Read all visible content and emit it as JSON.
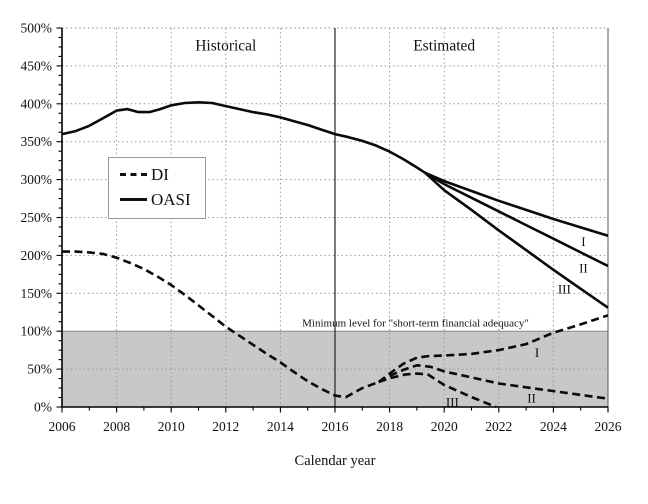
{
  "figure": {
    "xlabel": "Calendar year",
    "legend": [
      {
        "id": "di",
        "label": "DI",
        "style": "dashed"
      },
      {
        "id": "oasi",
        "label": "OASI",
        "style": "solid"
      }
    ]
  },
  "colors": {
    "line": "#0a0a0a",
    "grid": "#999999",
    "band_fill": "#c8c8c8",
    "band_edge": "#8a8a8a",
    "axis": "#000000",
    "divider": "#222222",
    "frame": "#555555",
    "background": "#ffffff"
  },
  "chart_data": {
    "type": "line",
    "title": "",
    "xlabel": "Calendar year",
    "ylabel": "",
    "x_range": [
      2006,
      2026
    ],
    "y_range": [
      0,
      500
    ],
    "grid": "dotted, every 2 years and every 50%",
    "legend_position": "upper-left box",
    "x_ticks": [
      {
        "value": 2006,
        "label": "2006"
      },
      {
        "value": 2008,
        "label": "2008"
      },
      {
        "value": 2010,
        "label": "2010"
      },
      {
        "value": 2012,
        "label": "2012"
      },
      {
        "value": 2014,
        "label": "2014"
      },
      {
        "value": 2016,
        "label": "2016"
      },
      {
        "value": 2018,
        "label": "2018"
      },
      {
        "value": 2020,
        "label": "2020"
      },
      {
        "value": 2022,
        "label": "2022"
      },
      {
        "value": 2024,
        "label": "2024"
      },
      {
        "value": 2026,
        "label": "2026"
      }
    ],
    "y_ticks": [
      {
        "value": 0,
        "label": "0%"
      },
      {
        "value": 50,
        "label": "50%"
      },
      {
        "value": 100,
        "label": "100%"
      },
      {
        "value": 150,
        "label": "150%"
      },
      {
        "value": 200,
        "label": "200%"
      },
      {
        "value": 250,
        "label": "250%"
      },
      {
        "value": 300,
        "label": "300%"
      },
      {
        "value": 350,
        "label": "350%"
      },
      {
        "value": 400,
        "label": "400%"
      },
      {
        "value": 450,
        "label": "450%"
      },
      {
        "value": 500,
        "label": "500%"
      }
    ],
    "minor_x_step": 1,
    "minor_y_step": 12.5,
    "divider_year": 2016,
    "shaded_band": {
      "from": 0,
      "to": 100
    },
    "series": [
      {
        "id": "oasi-historical",
        "group": "OASI",
        "dash": "solid",
        "points": [
          [
            2006,
            360
          ],
          [
            2006.5,
            364
          ],
          [
            2007,
            371
          ],
          [
            2007.5,
            381
          ],
          [
            2008,
            391
          ],
          [
            2008.4,
            393
          ],
          [
            2008.8,
            389
          ],
          [
            2009.2,
            389
          ],
          [
            2009.6,
            393
          ],
          [
            2010,
            398
          ],
          [
            2010.5,
            401
          ],
          [
            2011,
            402
          ],
          [
            2011.5,
            401
          ],
          [
            2012,
            397
          ],
          [
            2012.5,
            393
          ],
          [
            2013,
            389
          ],
          [
            2013.5,
            386
          ],
          [
            2014,
            382
          ],
          [
            2014.5,
            377
          ],
          [
            2015,
            372
          ],
          [
            2015.5,
            366
          ],
          [
            2016,
            360
          ],
          [
            2016.5,
            356
          ],
          [
            2017,
            351
          ],
          [
            2017.5,
            345
          ],
          [
            2018,
            337
          ],
          [
            2018.5,
            327
          ],
          [
            2019,
            316
          ],
          [
            2019.3,
            309
          ]
        ]
      },
      {
        "id": "oasi-alt-I",
        "group": "OASI",
        "scenario": "I",
        "dash": "solid",
        "points": [
          [
            2019.3,
            309
          ],
          [
            2020,
            298
          ],
          [
            2021,
            285
          ],
          [
            2022,
            272
          ],
          [
            2023,
            260
          ],
          [
            2024,
            248
          ],
          [
            2025,
            237
          ],
          [
            2026,
            226
          ]
        ]
      },
      {
        "id": "oasi-alt-II",
        "group": "OASI",
        "scenario": "II",
        "dash": "solid",
        "points": [
          [
            2019.3,
            309
          ],
          [
            2020,
            294
          ],
          [
            2021,
            276
          ],
          [
            2022,
            258
          ],
          [
            2023,
            240
          ],
          [
            2024,
            222
          ],
          [
            2025,
            204
          ],
          [
            2026,
            186
          ]
        ]
      },
      {
        "id": "oasi-alt-III",
        "group": "OASI",
        "scenario": "III",
        "dash": "solid",
        "points": [
          [
            2019.3,
            309
          ],
          [
            2020,
            286
          ],
          [
            2021,
            260
          ],
          [
            2022,
            233
          ],
          [
            2023,
            207
          ],
          [
            2024,
            181
          ],
          [
            2025,
            156
          ],
          [
            2026,
            131
          ]
        ]
      },
      {
        "id": "di-historical",
        "group": "DI",
        "dash": "dashed",
        "points": [
          [
            2006,
            205
          ],
          [
            2006.5,
            205
          ],
          [
            2007,
            204
          ],
          [
            2007.5,
            202
          ],
          [
            2008,
            197
          ],
          [
            2008.5,
            190
          ],
          [
            2009,
            182
          ],
          [
            2009.5,
            172
          ],
          [
            2010,
            161
          ],
          [
            2010.5,
            148
          ],
          [
            2011,
            134
          ],
          [
            2011.5,
            120
          ],
          [
            2012,
            106
          ],
          [
            2012.5,
            94
          ],
          [
            2013,
            82
          ],
          [
            2013.5,
            70
          ],
          [
            2014,
            59
          ],
          [
            2014.5,
            46
          ],
          [
            2015,
            34
          ],
          [
            2015.5,
            24
          ],
          [
            2016,
            15
          ],
          [
            2016.4,
            13
          ],
          [
            2017,
            25
          ],
          [
            2017.6,
            33
          ]
        ]
      },
      {
        "id": "di-alt-I",
        "group": "DI",
        "scenario": "I",
        "dash": "dashed",
        "points": [
          [
            2017.6,
            33
          ],
          [
            2018,
            44
          ],
          [
            2018.5,
            57
          ],
          [
            2019,
            65
          ],
          [
            2019.4,
            67
          ],
          [
            2020,
            68
          ],
          [
            2021,
            70
          ],
          [
            2022,
            75
          ],
          [
            2023,
            83
          ],
          [
            2024,
            98
          ],
          [
            2025,
            109
          ],
          [
            2026,
            121
          ]
        ]
      },
      {
        "id": "di-alt-II",
        "group": "DI",
        "scenario": "II",
        "dash": "dashed",
        "points": [
          [
            2017.6,
            33
          ],
          [
            2018,
            41
          ],
          [
            2018.5,
            49
          ],
          [
            2019,
            55
          ],
          [
            2019.5,
            53
          ],
          [
            2020,
            47
          ],
          [
            2021,
            39
          ],
          [
            2022,
            31
          ],
          [
            2023,
            26
          ],
          [
            2024,
            21
          ],
          [
            2025,
            16
          ],
          [
            2026,
            11
          ]
        ]
      },
      {
        "id": "di-alt-III",
        "group": "DI",
        "scenario": "III",
        "dash": "dashed",
        "points": [
          [
            2017.6,
            33
          ],
          [
            2018,
            38
          ],
          [
            2018.6,
            43
          ],
          [
            2019,
            44
          ],
          [
            2019.4,
            43
          ],
          [
            2020,
            29
          ],
          [
            2021,
            13
          ],
          [
            2021.9,
            0
          ]
        ]
      }
    ],
    "scenario_labels": [
      {
        "text": "I",
        "series": "oasi-alt-I",
        "x": 2025.1,
        "y": 218
      },
      {
        "text": "II",
        "series": "oasi-alt-II",
        "x": 2025.1,
        "y": 183
      },
      {
        "text": "III",
        "series": "oasi-alt-III",
        "x": 2024.4,
        "y": 155
      },
      {
        "text": "I",
        "series": "di-alt-I",
        "x": 2023.4,
        "y": 71
      },
      {
        "text": "II",
        "series": "di-alt-II",
        "x": 2023.2,
        "y": 11
      },
      {
        "text": "III",
        "series": "di-alt-III",
        "x": 2020.3,
        "y": 6
      }
    ],
    "annotations": [
      {
        "id": "historical",
        "text": "Historical",
        "x": 2012.0,
        "y": 477,
        "class": "section-label"
      },
      {
        "id": "estimated",
        "text": "Estimated",
        "x": 2020.0,
        "y": 477,
        "class": "section-label"
      },
      {
        "id": "min-level",
        "text": "Minimum level for \"short-term financial adequacy\"",
        "x": 2018.95,
        "y": 113,
        "class": "note-label"
      }
    ]
  }
}
